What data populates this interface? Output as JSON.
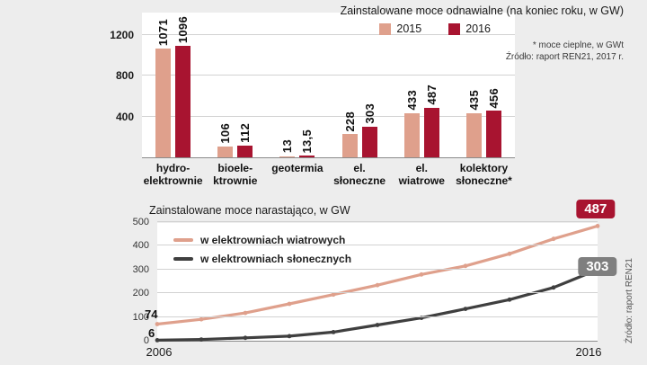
{
  "colors": {
    "series2015": "#dfa08c",
    "series2016": "#a81430",
    "wind_line": "#dfa08c",
    "solar_line": "#3f3f3f",
    "badge_wind": "#a81430",
    "badge_solar": "#7f7f7f"
  },
  "top_chart": {
    "title": "Zainstalowane moce odnawialne (na koniec roku, w GW)",
    "legend": [
      {
        "label": "2015"
      },
      {
        "label": "2016"
      }
    ],
    "note_line1": "* moce cieplne, w GWt",
    "note_line2": "Źródło: raport REN21, 2017 r."
  },
  "bottom_chart": {
    "title": "Zainstalowane moce narastająco, w GW",
    "legend": [
      {
        "label": "w elektrowniach wiatrowych"
      },
      {
        "label": "w elektrowniach słonecznych"
      }
    ],
    "start_labels": {
      "wind": "74",
      "solar": "6"
    },
    "end_badges": {
      "wind": "487",
      "solar": "303"
    },
    "x_labels": [
      "2006",
      "2016"
    ],
    "source_vertical": "Źródło: raport REN21"
  },
  "chart_data": [
    {
      "type": "bar",
      "title": "Zainstalowane moce odnawialne (na koniec roku, w GW)",
      "categories": [
        "hydroelektrownie",
        "bioelektrownie",
        "geotermia",
        "el. słoneczne",
        "el. wiatrowe",
        "kolektory słoneczne*"
      ],
      "category_label_lines": [
        [
          "hydro-",
          "elektrownie"
        ],
        [
          "bioele-",
          "ktrownie"
        ],
        [
          "geotermia"
        ],
        [
          "el.",
          "słoneczne"
        ],
        [
          "el.",
          "wiatrowe"
        ],
        [
          "kolektory",
          "słoneczne*"
        ]
      ],
      "series": [
        {
          "name": "2015",
          "color": "#dfa08c",
          "values": [
            1071,
            106,
            13,
            228,
            433,
            435
          ],
          "labels": [
            "1071",
            "106",
            "13",
            "228",
            "433",
            "435"
          ]
        },
        {
          "name": "2016",
          "color": "#a81430",
          "values": [
            1096,
            112,
            13.5,
            303,
            487,
            456
          ],
          "labels": [
            "1096",
            "112",
            "13,5",
            "303",
            "487",
            "456"
          ]
        }
      ],
      "ylim": [
        0,
        1200
      ],
      "y_ticks": [
        400,
        800,
        1200
      ],
      "unit": "GW",
      "note": "* moce cieplne, w GWt",
      "source": "Źródło: raport REN21, 2017 r.",
      "legend_position": "top",
      "grid": true
    },
    {
      "type": "line",
      "title": "Zainstalowane moce narastająco, w GW",
      "x": [
        2006,
        2007,
        2008,
        2009,
        2010,
        2011,
        2012,
        2013,
        2014,
        2015,
        2016
      ],
      "series": [
        {
          "name": "w elektrowniach wiatrowych",
          "color": "#dfa08c",
          "values": [
            74,
            94,
            121,
            159,
            198,
            238,
            283,
            319,
            370,
            433,
            487
          ]
        },
        {
          "name": "w elektrowniach słonecznych",
          "color": "#3f3f3f",
          "values": [
            6,
            9,
            16,
            23,
            40,
            70,
            100,
            138,
            177,
            228,
            303
          ]
        }
      ],
      "ylim": [
        0,
        500
      ],
      "y_ticks": [
        0,
        100,
        200,
        300,
        400,
        500
      ],
      "x_tick_labels": [
        "2006",
        "2016"
      ],
      "annotations": {
        "start_wind": 74,
        "start_solar": 6,
        "end_wind": 487,
        "end_solar": 303
      },
      "source": "Źródło: raport REN21",
      "legend_position": "inside-top-left",
      "grid": true
    }
  ]
}
